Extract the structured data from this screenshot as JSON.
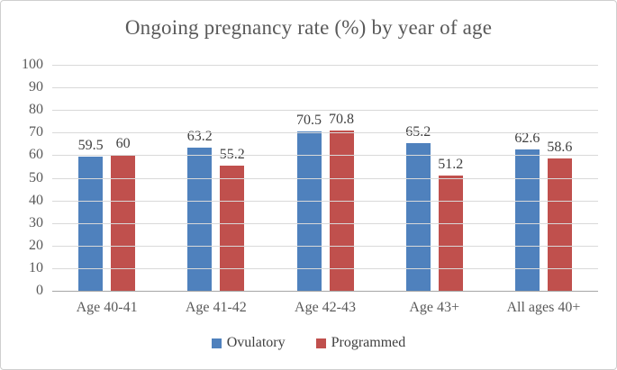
{
  "chart_data": {
    "type": "bar",
    "title": "Ongoing pregnancy rate (%) by year of age",
    "categories": [
      "Age 40-41",
      "Age 41-42",
      "Age 42-43",
      "Age 43+",
      "All ages 40+"
    ],
    "series": [
      {
        "name": "Ovulatory",
        "color": "#4F81BD",
        "values": [
          59.5,
          63.2,
          70.5,
          65.2,
          62.6
        ]
      },
      {
        "name": "Programmed",
        "color": "#C0504D",
        "values": [
          60,
          55.2,
          70.8,
          51.2,
          58.6
        ]
      }
    ],
    "xlabel": "",
    "ylabel": "",
    "ylim": [
      0,
      100
    ],
    "ytick_step": 10,
    "grid": true,
    "legend_position": "bottom"
  },
  "colors": {
    "gridline": "#d9d9d9",
    "axis_line": "#a6a6a6",
    "title_text": "#595959",
    "tick_text": "#595959",
    "data_label_text": "#404040",
    "background": "#ffffff",
    "border": "#cfcfcf"
  }
}
